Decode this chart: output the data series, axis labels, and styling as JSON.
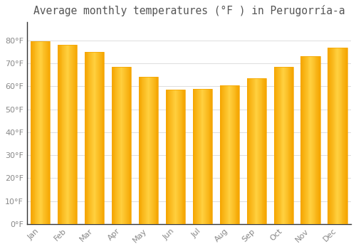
{
  "title": "Average monthly temperatures (°F ) in Perugorría-a",
  "months": [
    "Jan",
    "Feb",
    "Mar",
    "Apr",
    "May",
    "Jun",
    "Jul",
    "Aug",
    "Sep",
    "Oct",
    "Nov",
    "Dec"
  ],
  "values": [
    79.5,
    78.0,
    75.0,
    68.5,
    64.0,
    58.5,
    59.0,
    60.5,
    63.5,
    68.5,
    73.0,
    77.0
  ],
  "bar_color_center": "#FFD040",
  "bar_color_edge": "#F5A500",
  "background_color": "#FFFFFF",
  "grid_color": "#DDDDDD",
  "text_color": "#888888",
  "ylim": [
    0,
    88
  ],
  "yticks": [
    0,
    10,
    20,
    30,
    40,
    50,
    60,
    70,
    80
  ],
  "ytick_labels": [
    "0°F",
    "10°F",
    "20°F",
    "30°F",
    "40°F",
    "50°F",
    "60°F",
    "70°F",
    "80°F"
  ],
  "title_fontsize": 10.5,
  "tick_fontsize": 8,
  "spine_color": "#333333"
}
